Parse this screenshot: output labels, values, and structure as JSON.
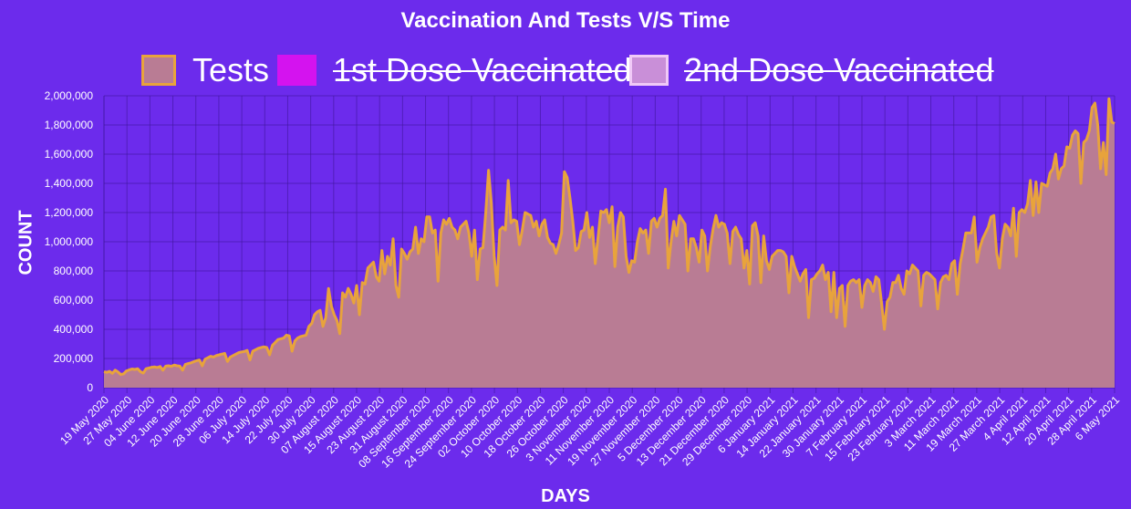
{
  "chart_data": {
    "type": "area",
    "title": "Vaccination And Tests V/S Time",
    "xlabel": "DAYS",
    "ylabel": "COUNT",
    "ylim": [
      0,
      2000000
    ],
    "y_ticks": [
      "0",
      "200,000",
      "400,000",
      "600,000",
      "800,000",
      "1,000,000",
      "1,200,000",
      "1,400,000",
      "1,600,000",
      "1,800,000",
      "2,000,000"
    ],
    "x_tick_labels": [
      "19 May 2020",
      "27 May 2020",
      "04 June 2020",
      "12 June 2020",
      "20 June 2020",
      "28 June 2020",
      "06 July 2020",
      "14 July 2020",
      "22 July 2020",
      "30 July 2020",
      "07 August 2020",
      "15 August 2020",
      "23 August 2020",
      "31 August 2020",
      "08 September 2020",
      "16 September 2020",
      "24 September 2020",
      "02 October 2020",
      "10 October 2020",
      "18 October 2020",
      "26 October 2020",
      "3 November 2020",
      "11 November 2020",
      "19 November 2020",
      "27 November 2020",
      "5 December 2020",
      "13 December 2020",
      "21 December 2020",
      "29 December 2020",
      "6 January 2021",
      "14 January 2021",
      "22 January 2021",
      "30 January 2021",
      "7 February 2021",
      "15 February 2021",
      "23 February 2021",
      "3 March 2021",
      "11 March 2021",
      "19 March 2021",
      "27 March 2021",
      "4 April 2021",
      "12 April 2021",
      "20 April 2021",
      "28 April 2021",
      "6 May 2021"
    ],
    "grid": true,
    "legend": "top",
    "colors": {
      "background": "#6c2bec",
      "tests_line": "#e8a33c",
      "tests_fill": "#b97c94",
      "dose1": "#d413ef",
      "dose2": "#c98fd8"
    },
    "series": [
      {
        "name": "Tests",
        "hidden": false,
        "values": [
          110000,
          105000,
          112000,
          98000,
          120000,
          108000,
          90000,
          95000,
          115000,
          122000,
          128000,
          125000,
          130000,
          110000,
          100000,
          130000,
          135000,
          140000,
          142000,
          138000,
          145000,
          120000,
          148000,
          150000,
          146000,
          155000,
          150000,
          148000,
          120000,
          160000,
          165000,
          170000,
          178000,
          185000,
          190000,
          150000,
          195000,
          205000,
          215000,
          210000,
          220000,
          225000,
          230000,
          235000,
          180000,
          210000,
          220000,
          230000,
          240000,
          245000,
          248000,
          255000,
          190000,
          250000,
          260000,
          270000,
          275000,
          280000,
          275000,
          225000,
          290000,
          310000,
          330000,
          335000,
          340000,
          360000,
          355000,
          250000,
          320000,
          340000,
          350000,
          355000,
          360000,
          420000,
          440000,
          500000,
          520000,
          530000,
          420000,
          480000,
          680000,
          560000,
          500000,
          460000,
          370000,
          650000,
          620000,
          680000,
          640000,
          580000,
          700000,
          500000,
          720000,
          710000,
          820000,
          840000,
          860000,
          760000,
          730000,
          940000,
          780000,
          900000,
          840000,
          1020000,
          700000,
          620000,
          950000,
          920000,
          880000,
          930000,
          950000,
          1100000,
          920000,
          1020000,
          1000000,
          1170000,
          1170000,
          1060000,
          1080000,
          730000,
          1060000,
          1150000,
          1120000,
          1160000,
          1100000,
          1080000,
          1020000,
          1100000,
          1120000,
          1140000,
          1060000,
          900000,
          1080000,
          740000,
          950000,
          960000,
          1200000,
          1490000,
          1260000,
          900000,
          700000,
          1080000,
          1100000,
          1080000,
          1420000,
          1130000,
          1150000,
          1140000,
          980000,
          1080000,
          1200000,
          1190000,
          1180000,
          1100000,
          1140000,
          1040000,
          1120000,
          1150000,
          1030000,
          990000,
          980000,
          920000,
          980000,
          1060000,
          1480000,
          1440000,
          1300000,
          1140000,
          940000,
          960000,
          1070000,
          1080000,
          1200000,
          1030000,
          1100000,
          850000,
          1030000,
          1210000,
          1200000,
          1220000,
          1130000,
          1240000,
          830000,
          1100000,
          1200000,
          1170000,
          900000,
          790000,
          870000,
          860000,
          1000000,
          1090000,
          1060000,
          1080000,
          920000,
          1140000,
          1160000,
          1100000,
          1160000,
          1180000,
          1360000,
          820000,
          1000000,
          1140000,
          1040000,
          1180000,
          1150000,
          1120000,
          800000,
          1020000,
          1020000,
          960000,
          860000,
          1080000,
          1040000,
          800000,
          970000,
          1090000,
          1180000,
          1100000,
          1130000,
          1120000,
          1060000,
          850000,
          1070000,
          1100000,
          1050000,
          1020000,
          820000,
          940000,
          710000,
          1110000,
          1130000,
          1040000,
          720000,
          1040000,
          870000,
          810000,
          900000,
          920000,
          940000,
          940000,
          930000,
          900000,
          650000,
          900000,
          830000,
          780000,
          730000,
          780000,
          810000,
          480000,
          740000,
          750000,
          780000,
          800000,
          840000,
          740000,
          790000,
          520000,
          790000,
          480000,
          680000,
          700000,
          420000,
          700000,
          730000,
          740000,
          720000,
          740000,
          550000,
          700000,
          740000,
          720000,
          660000,
          760000,
          740000,
          580000,
          400000,
          590000,
          620000,
          720000,
          720000,
          770000,
          680000,
          640000,
          800000,
          780000,
          840000,
          820000,
          800000,
          560000,
          770000,
          790000,
          780000,
          760000,
          740000,
          540000,
          720000,
          760000,
          770000,
          740000,
          850000,
          870000,
          640000,
          850000,
          950000,
          1060000,
          1060000,
          1060000,
          1170000,
          860000,
          960000,
          1020000,
          1060000,
          1100000,
          1170000,
          1180000,
          920000,
          820000,
          1020000,
          1120000,
          1100000,
          1040000,
          1230000,
          900000,
          1200000,
          1220000,
          1200000,
          1260000,
          1420000,
          1180000,
          1410000,
          1200000,
          1400000,
          1390000,
          1380000,
          1470000,
          1500000,
          1600000,
          1430000,
          1500000,
          1520000,
          1650000,
          1640000,
          1730000,
          1760000,
          1740000,
          1400000,
          1680000,
          1700000,
          1760000,
          1920000,
          1950000,
          1800000,
          1500000,
          1680000,
          1460000,
          1980000,
          1820000,
          1810000
        ]
      },
      {
        "name": "1st Dose Vaccinated",
        "hidden": true,
        "values": []
      },
      {
        "name": "2nd Dose Vaccinated",
        "hidden": true,
        "values": []
      }
    ]
  }
}
